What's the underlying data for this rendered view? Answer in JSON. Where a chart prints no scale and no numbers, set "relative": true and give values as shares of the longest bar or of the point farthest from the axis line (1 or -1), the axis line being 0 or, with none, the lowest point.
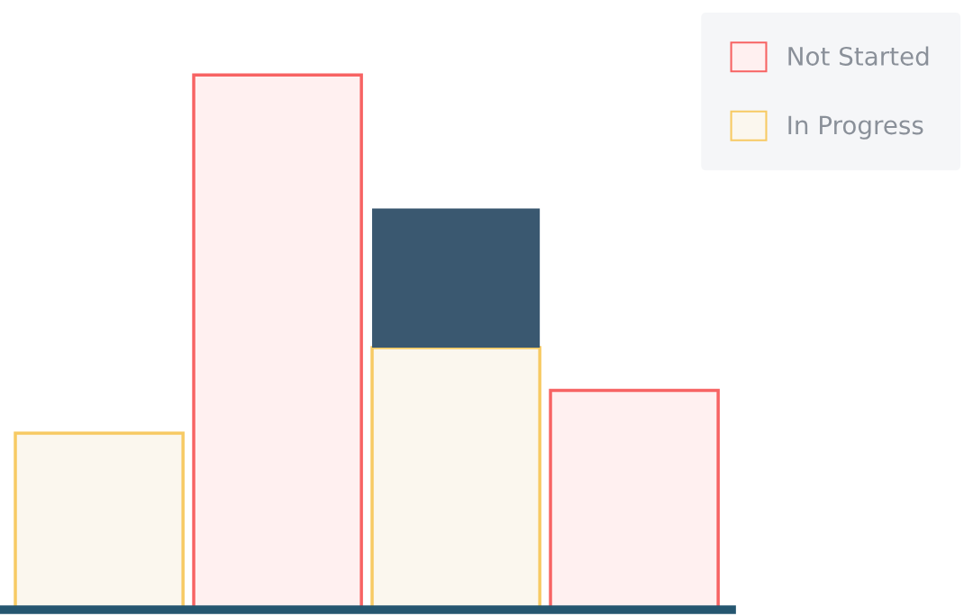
{
  "chart_data": {
    "type": "bar",
    "relative": true,
    "stacked": true,
    "categories": [
      null,
      null,
      null,
      null
    ],
    "series": [
      {
        "name": "In Progress",
        "color": "#fbf7ee",
        "values": [
          0.33,
          0,
          0.49,
          0
        ]
      },
      {
        "color": "#3a5870",
        "values": [
          0,
          0,
          0.26,
          0
        ]
      },
      {
        "name": "Not Started",
        "color": "#fff0f0",
        "values": [
          0,
          1,
          0,
          0.41
        ]
      }
    ],
    "legend": "top right",
    "grid": false
  }
}
